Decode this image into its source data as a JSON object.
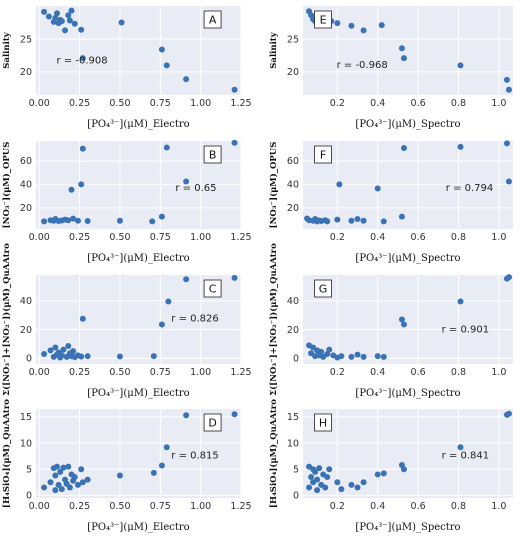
{
  "chart_data": [
    {
      "type": "scatter",
      "panel_letter": "A",
      "r_label": "r = -0.908",
      "xlabel": "[PO₄³⁻](μM)_Electro",
      "ylabel": "Salinity",
      "xlim": [
        -0.02,
        1.25
      ],
      "ylim": [
        16.5,
        30
      ],
      "xticks": [
        0.0,
        0.25,
        0.5,
        0.75,
        1.0,
        1.25
      ],
      "xtick_labels": [
        "0.00",
        "0.25",
        "0.50",
        "0.75",
        "1.00",
        "1.25"
      ],
      "yticks": [
        20,
        25
      ],
      "ytick_labels": [
        "20",
        "25"
      ],
      "x": [
        0.03,
        0.06,
        0.09,
        0.1,
        0.11,
        0.12,
        0.13,
        0.14,
        0.16,
        0.18,
        0.2,
        0.19,
        0.22,
        0.26,
        0.27,
        0.51,
        0.76,
        0.79,
        0.91,
        1.21
      ],
      "y": [
        29.1,
        28.4,
        27.6,
        28.2,
        28.9,
        27.4,
        27.9,
        27.7,
        26.3,
        28.6,
        29.3,
        27.8,
        27.3,
        26.4,
        22.1,
        27.5,
        23.4,
        21.0,
        18.9,
        17.3
      ]
    },
    {
      "type": "scatter",
      "panel_letter": "E",
      "r_label": "r = -0.968",
      "xlabel": "[PO₄³⁻](μM)_Spectro",
      "ylabel": "Salinity",
      "xlim": [
        0.03,
        1.07
      ],
      "ylim": [
        16.5,
        30
      ],
      "xticks": [
        0.2,
        0.4,
        0.6,
        0.8,
        1.0
      ],
      "xtick_labels": [
        "0.2",
        "0.4",
        "0.6",
        "0.8",
        "1.0"
      ],
      "yticks": [
        20,
        25
      ],
      "ytick_labels": [
        "20",
        "25"
      ],
      "x": [
        0.06,
        0.07,
        0.08,
        0.09,
        0.1,
        0.11,
        0.12,
        0.13,
        0.15,
        0.17,
        0.2,
        0.27,
        0.33,
        0.42,
        0.52,
        0.53,
        0.81,
        1.04,
        1.05
      ],
      "y": [
        29.2,
        28.6,
        28.0,
        27.7,
        27.9,
        28.1,
        27.6,
        27.8,
        27.5,
        27.7,
        27.4,
        27.0,
        26.3,
        27.1,
        23.6,
        22.1,
        21.0,
        18.8,
        17.3
      ]
    },
    {
      "type": "scatter",
      "panel_letter": "B",
      "r_label": "r = 0.65",
      "xlabel": "[PO₄³⁻](μM)_Electro",
      "ylabel": "[NO₃⁻](μM)_OPUS",
      "xlim": [
        -0.02,
        1.25
      ],
      "ylim": [
        2,
        77
      ],
      "xticks": [
        0.0,
        0.25,
        0.5,
        0.75,
        1.0,
        1.25
      ],
      "xtick_labels": [
        "0.00",
        "0.25",
        "0.50",
        "0.75",
        "1.00",
        "1.25"
      ],
      "yticks": [
        20,
        40,
        60
      ],
      "ytick_labels": [
        "20",
        "40",
        "60"
      ],
      "x": [
        0.03,
        0.07,
        0.09,
        0.1,
        0.12,
        0.14,
        0.16,
        0.18,
        0.2,
        0.21,
        0.24,
        0.26,
        0.27,
        0.3,
        0.5,
        0.7,
        0.76,
        0.79,
        0.91,
        1.21
      ],
      "y": [
        8.5,
        9.5,
        9.0,
        10.5,
        8.8,
        9.2,
        10.0,
        9.5,
        35.5,
        10.8,
        9.0,
        40.0,
        70.5,
        8.8,
        9.0,
        8.5,
        12.5,
        71.5,
        42.5,
        75.5
      ]
    },
    {
      "type": "scatter",
      "panel_letter": "F",
      "r_label": "r = 0.794",
      "xlabel": "[PO₄³⁻](μM)_Spectro",
      "ylabel": "[NO₃⁻](μM)_OPUS",
      "xlim": [
        0.03,
        1.07
      ],
      "ylim": [
        2,
        77
      ],
      "xticks": [
        0.2,
        0.4,
        0.6,
        0.8,
        1.0
      ],
      "xtick_labels": [
        "0.2",
        "0.4",
        "0.6",
        "0.8",
        "1.0"
      ],
      "yticks": [
        20,
        40,
        60
      ],
      "ytick_labels": [
        "20",
        "40",
        "60"
      ],
      "x": [
        0.05,
        0.06,
        0.08,
        0.09,
        0.1,
        0.11,
        0.12,
        0.14,
        0.15,
        0.2,
        0.21,
        0.27,
        0.3,
        0.33,
        0.4,
        0.43,
        0.52,
        0.53,
        0.81,
        1.04,
        1.05
      ],
      "y": [
        11.0,
        9.5,
        9.0,
        10.5,
        8.5,
        9.2,
        8.8,
        9.5,
        8.5,
        10.0,
        40.0,
        9.0,
        10.5,
        9.0,
        36.5,
        8.5,
        12.5,
        71.0,
        72.0,
        75.0,
        42.5
      ]
    },
    {
      "type": "scatter",
      "panel_letter": "C",
      "r_label": "r = 0.826",
      "xlabel": "[PO₄³⁻](μM)_Electro",
      "ylabel": "Σ([NO₃⁻]+[NO₂⁻])(μM)_QuAAtro",
      "xlim": [
        -0.02,
        1.25
      ],
      "ylim": [
        -4,
        58
      ],
      "xticks": [
        0.0,
        0.25,
        0.5,
        0.75,
        1.0,
        1.25
      ],
      "xtick_labels": [
        "0.00",
        "0.25",
        "0.50",
        "0.75",
        "1.00",
        "1.25"
      ],
      "yticks": [
        0,
        20,
        40
      ],
      "ytick_labels": [
        "0",
        "20",
        "40"
      ],
      "x": [
        0.03,
        0.07,
        0.09,
        0.1,
        0.11,
        0.12,
        0.13,
        0.14,
        0.15,
        0.17,
        0.18,
        0.19,
        0.2,
        0.21,
        0.22,
        0.24,
        0.26,
        0.27,
        0.3,
        0.5,
        0.71,
        0.76,
        0.8,
        0.91,
        1.21
      ],
      "y": [
        3.0,
        5.5,
        1.0,
        7.5,
        2.5,
        4.0,
        0.5,
        2.0,
        6.0,
        1.0,
        8.5,
        3.5,
        1.5,
        5.0,
        0.8,
        2.0,
        1.2,
        27.5,
        1.5,
        1.2,
        1.5,
        23.5,
        39.5,
        55.0,
        56.0
      ]
    },
    {
      "type": "scatter",
      "panel_letter": "G",
      "r_label": "r = 0.901",
      "xlabel": "[PO₄³⁻](μM)_Spectro",
      "ylabel": "Σ([NO₃⁻]+[NO₂⁻])(μM)_QuAAtro",
      "xlim": [
        0.03,
        1.07
      ],
      "ylim": [
        -4,
        58
      ],
      "xticks": [
        0.2,
        0.4,
        0.6,
        0.8,
        1.0
      ],
      "xtick_labels": [
        "0.2",
        "0.4",
        "0.6",
        "0.8",
        "1.0"
      ],
      "yticks": [
        0,
        20,
        40
      ],
      "ytick_labels": [
        "0",
        "20",
        "40"
      ],
      "x": [
        0.06,
        0.07,
        0.08,
        0.09,
        0.1,
        0.11,
        0.12,
        0.13,
        0.15,
        0.16,
        0.18,
        0.2,
        0.22,
        0.27,
        0.3,
        0.33,
        0.4,
        0.43,
        0.52,
        0.53,
        0.81,
        1.04,
        1.05
      ],
      "y": [
        9.0,
        3.5,
        7.5,
        1.5,
        5.5,
        2.0,
        4.5,
        1.0,
        3.0,
        6.0,
        2.0,
        0.5,
        1.5,
        1.0,
        2.5,
        1.0,
        1.5,
        1.0,
        27.0,
        23.5,
        39.5,
        55.5,
        56.5
      ]
    },
    {
      "type": "scatter",
      "panel_letter": "D",
      "r_label": "r = 0.815",
      "xlabel": "[PO₄³⁻](μM)_Electro",
      "ylabel": "[H₄SiO₄](μM)_QuAAtro",
      "xlim": [
        -0.02,
        1.25
      ],
      "ylim": [
        -0.5,
        16.5
      ],
      "xticks": [
        0.0,
        0.25,
        0.5,
        0.75,
        1.0,
        1.25
      ],
      "xtick_labels": [
        "0.00",
        "0.25",
        "0.50",
        "0.75",
        "1.00",
        "1.25"
      ],
      "yticks": [
        0,
        5,
        10,
        15
      ],
      "ytick_labels": [
        "0",
        "5",
        "10",
        "15"
      ],
      "x": [
        0.03,
        0.07,
        0.09,
        0.1,
        0.1,
        0.11,
        0.12,
        0.13,
        0.14,
        0.15,
        0.16,
        0.17,
        0.18,
        0.19,
        0.2,
        0.21,
        0.22,
        0.24,
        0.26,
        0.27,
        0.3,
        0.5,
        0.71,
        0.76,
        0.79,
        0.91,
        1.21
      ],
      "y": [
        1.5,
        2.5,
        5.2,
        1.0,
        3.8,
        5.5,
        2.0,
        4.5,
        1.2,
        5.3,
        3.0,
        2.2,
        5.5,
        1.5,
        4.0,
        2.8,
        3.5,
        2.0,
        5.0,
        2.5,
        3.0,
        3.8,
        4.3,
        5.7,
        9.2,
        15.3,
        15.5
      ]
    },
    {
      "type": "scatter",
      "panel_letter": "H",
      "r_label": "r = 0.841",
      "xlabel": "[PO₄³⁻](μM)_Spectro",
      "ylabel": "[H₄SiO₄](μM)_QuAAtro",
      "xlim": [
        0.03,
        1.07
      ],
      "ylim": [
        -0.5,
        16.5
      ],
      "xticks": [
        0.2,
        0.4,
        0.6,
        0.8,
        1.0
      ],
      "xtick_labels": [
        "0.2",
        "0.4",
        "0.6",
        "0.8",
        "1.0"
      ],
      "yticks": [
        0,
        5,
        10,
        15
      ],
      "ytick_labels": [
        "0",
        "5",
        "10",
        "15"
      ],
      "x": [
        0.06,
        0.06,
        0.07,
        0.08,
        0.08,
        0.09,
        0.1,
        0.1,
        0.11,
        0.12,
        0.13,
        0.14,
        0.15,
        0.16,
        0.2,
        0.22,
        0.27,
        0.3,
        0.33,
        0.4,
        0.43,
        0.52,
        0.53,
        0.81,
        1.04,
        1.05
      ],
      "y": [
        1.5,
        5.5,
        3.5,
        2.5,
        5.0,
        4.5,
        1.0,
        3.0,
        5.2,
        2.0,
        4.0,
        1.5,
        3.5,
        5.0,
        2.5,
        1.2,
        2.0,
        1.5,
        2.5,
        4.0,
        4.2,
        5.8,
        5.0,
        9.2,
        15.4,
        15.6
      ]
    }
  ]
}
